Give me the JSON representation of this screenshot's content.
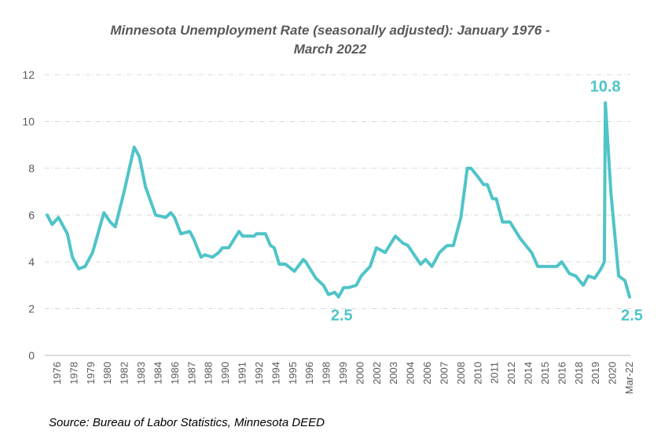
{
  "chart_data": {
    "type": "line",
    "title_lines": [
      "Minnesota Unemployment Rate (seasonally adjusted): January 1976 -",
      "March 2022"
    ],
    "xlabel": "",
    "ylabel": "",
    "ylim": [
      0,
      12
    ],
    "yticks": [
      "0",
      "2",
      "4",
      "6",
      "8",
      "10",
      "12"
    ],
    "grid": true,
    "x_tick_labels": [
      "1976",
      "1978",
      "1979",
      "1980",
      "1982",
      "1983",
      "1984",
      "1986",
      "1987",
      "1988",
      "1990",
      "1991",
      "1992",
      "1994",
      "1995",
      "1996",
      "1998",
      "1999",
      "2000",
      "2002",
      "2003",
      "2004",
      "2006",
      "2007",
      "2008",
      "2010",
      "2011",
      "2012",
      "2014",
      "2015",
      "2016",
      "2018",
      "2019",
      "2020",
      "Mar-22"
    ],
    "line_color": "#4fc4c8",
    "series": [
      {
        "name": "Unemployment rate (%)",
        "points": [
          [
            1976.0,
            6.0
          ],
          [
            1976.4,
            5.6
          ],
          [
            1976.9,
            5.9
          ],
          [
            1977.6,
            5.2
          ],
          [
            1978.0,
            4.2
          ],
          [
            1978.5,
            3.7
          ],
          [
            1979.0,
            3.8
          ],
          [
            1979.6,
            4.4
          ],
          [
            1980.5,
            6.1
          ],
          [
            1981.0,
            5.7
          ],
          [
            1981.4,
            5.5
          ],
          [
            1982.1,
            7.0
          ],
          [
            1982.9,
            8.9
          ],
          [
            1983.3,
            8.5
          ],
          [
            1983.8,
            7.2
          ],
          [
            1984.6,
            6.0
          ],
          [
            1985.4,
            5.9
          ],
          [
            1985.8,
            6.1
          ],
          [
            1986.1,
            5.9
          ],
          [
            1986.6,
            5.2
          ],
          [
            1987.3,
            5.3
          ],
          [
            1987.6,
            5.0
          ],
          [
            1988.2,
            4.2
          ],
          [
            1988.5,
            4.3
          ],
          [
            1989.1,
            4.2
          ],
          [
            1989.6,
            4.4
          ],
          [
            1989.9,
            4.6
          ],
          [
            1990.4,
            4.6
          ],
          [
            1991.2,
            5.3
          ],
          [
            1991.5,
            5.1
          ],
          [
            1992.4,
            5.1
          ],
          [
            1992.6,
            5.2
          ],
          [
            1993.3,
            5.2
          ],
          [
            1993.7,
            4.7
          ],
          [
            1994.0,
            4.6
          ],
          [
            1994.4,
            3.9
          ],
          [
            1994.9,
            3.9
          ],
          [
            1995.6,
            3.6
          ],
          [
            1996.3,
            4.1
          ],
          [
            1996.5,
            4.0
          ],
          [
            1997.3,
            3.3
          ],
          [
            1997.9,
            3.0
          ],
          [
            1998.3,
            2.6
          ],
          [
            1998.8,
            2.7
          ],
          [
            1999.1,
            2.5
          ],
          [
            1999.5,
            2.9
          ],
          [
            1999.9,
            2.9
          ],
          [
            2000.5,
            3.0
          ],
          [
            2000.9,
            3.4
          ],
          [
            2001.6,
            3.8
          ],
          [
            2002.1,
            4.6
          ],
          [
            2002.8,
            4.4
          ],
          [
            2003.6,
            5.1
          ],
          [
            2004.2,
            4.8
          ],
          [
            2004.6,
            4.7
          ],
          [
            2005.6,
            3.9
          ],
          [
            2006.0,
            4.1
          ],
          [
            2006.5,
            3.8
          ],
          [
            2007.1,
            4.4
          ],
          [
            2007.7,
            4.7
          ],
          [
            2008.2,
            4.7
          ],
          [
            2008.8,
            5.9
          ],
          [
            2009.3,
            8.0
          ],
          [
            2009.6,
            8.0
          ],
          [
            2010.2,
            7.6
          ],
          [
            2010.6,
            7.3
          ],
          [
            2010.9,
            7.3
          ],
          [
            2011.3,
            6.7
          ],
          [
            2011.6,
            6.7
          ],
          [
            2012.1,
            5.7
          ],
          [
            2012.7,
            5.7
          ],
          [
            2013.5,
            5.0
          ],
          [
            2014.4,
            4.4
          ],
          [
            2014.9,
            3.8
          ],
          [
            2015.8,
            3.8
          ],
          [
            2016.4,
            3.8
          ],
          [
            2016.8,
            4.0
          ],
          [
            2017.4,
            3.5
          ],
          [
            2017.9,
            3.4
          ],
          [
            2018.5,
            3.0
          ],
          [
            2018.9,
            3.4
          ],
          [
            2019.4,
            3.3
          ],
          [
            2019.9,
            3.7
          ],
          [
            2020.17,
            4.0
          ],
          [
            2020.25,
            10.8
          ],
          [
            2020.7,
            6.9
          ],
          [
            2021.3,
            3.4
          ],
          [
            2021.8,
            3.2
          ],
          [
            2022.17,
            2.5
          ]
        ]
      }
    ],
    "annotations": [
      {
        "text": "10.8",
        "x": 2020.25,
        "y": 10.8
      },
      {
        "text": "2.5",
        "x": 1999.1,
        "y": 2.5
      },
      {
        "text": "2.5",
        "x": 2022.17,
        "y": 2.5
      }
    ]
  },
  "source": "Source: Bureau of Labor Statistics, Minnesota DEED"
}
